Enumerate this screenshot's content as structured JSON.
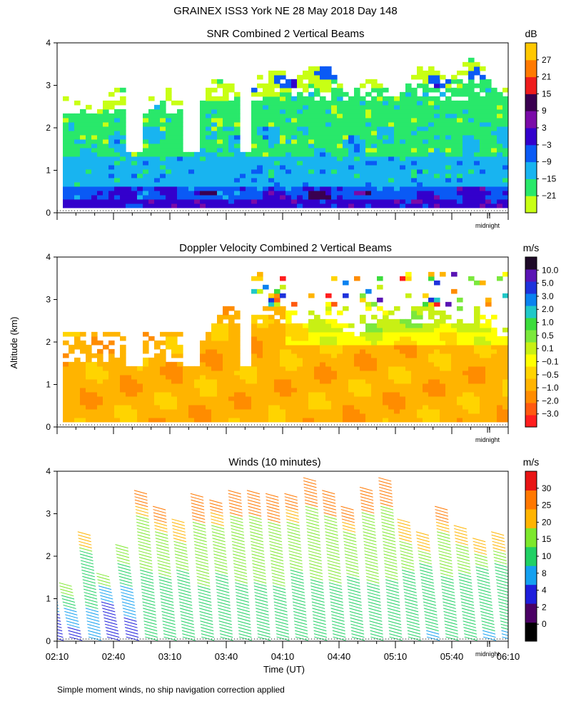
{
  "page_title": "GRAINEX ISS3 York NE  28 May 2018 Day 148",
  "footnote": "Simple moment winds, no ship navigation correction applied",
  "y_axis_label": "Altitude (km)",
  "x_axis_label": "Time (UT)",
  "midnight_label": "midnight",
  "time_ticks": [
    "02:10",
    "02:40",
    "03:10",
    "03:40",
    "04:10",
    "04:40",
    "05:10",
    "05:40",
    "06:10"
  ],
  "altitude_ticks": [
    "0",
    "1",
    "2",
    "3",
    "4"
  ],
  "palette": {
    "snr": [
      "#c8ff14",
      "#29e86a",
      "#18b4f0",
      "#0a5af5",
      "#3300cc",
      "#7a0aa8",
      "#3a0050",
      "#ee1c1c",
      "#ff7a00",
      "#ffc800"
    ],
    "doppler": [
      "#ff1e1e",
      "#ff5a10",
      "#ff8c00",
      "#ffb400",
      "#ffd400",
      "#ffff00",
      "#c8f014",
      "#7be83c",
      "#3cdc3c",
      "#20c8c8",
      "#0a82f0",
      "#1e32dc",
      "#5a14b4",
      "#1e0a28"
    ],
    "winds": [
      "#000000",
      "#4a0064",
      "#1e1edc",
      "#14a0f0",
      "#20d064",
      "#7de82c",
      "#ffb400",
      "#ff7800",
      "#e81414"
    ]
  },
  "chart_data": [
    {
      "type": "heatmap",
      "title": "SNR Combined 2 Vertical Beams",
      "units": "dB",
      "xlabel": "",
      "ylabel": "Altitude (km)",
      "x_range": [
        "02:10",
        "06:10"
      ],
      "ylim": [
        0,
        4
      ],
      "colorbar_ticks": [
        "27",
        "21",
        "15",
        "9",
        "3",
        "−3",
        "−9",
        "−15",
        "−21"
      ],
      "altitude_layers_km": [
        {
          "bottom": 0.1,
          "top": 0.6,
          "snr_db": 0
        },
        {
          "bottom": 0.6,
          "top": 1.4,
          "snr_db": -8
        },
        {
          "bottom": 1.4,
          "top": 2.4,
          "snr_db": -14
        },
        {
          "bottom": 2.4,
          "top": 3.3,
          "snr_db": -17
        },
        {
          "bottom": 3.3,
          "top": 4.0,
          "snr_db": -20
        }
      ]
    },
    {
      "type": "heatmap",
      "title": "Doppler Velocity Combined 2 Vertical Beams",
      "units": "m/s",
      "xlabel": "",
      "ylabel": "Altitude (km)",
      "x_range": [
        "02:10",
        "06:10"
      ],
      "ylim": [
        0,
        4
      ],
      "colorbar_ticks": [
        "10.0",
        "5.0",
        "3.0",
        "2.0",
        "1.0",
        "0.5",
        "0.1",
        "−0.1",
        "−0.5",
        "−1.0",
        "−2.0",
        "−3.0"
      ],
      "altitude_layers_km": [
        {
          "bottom": 0.1,
          "top": 1.4,
          "velocity_ms": -0.4
        },
        {
          "bottom": 1.4,
          "top": 2.4,
          "velocity_ms": -0.6
        },
        {
          "bottom": 2.4,
          "top": 3.6,
          "velocity_ms": 0.2
        }
      ]
    },
    {
      "type": "scatter",
      "title": "Winds (10 minutes)",
      "units": "m/s",
      "xlabel": "Time (UT)",
      "ylabel": "Altitude (km)",
      "x_range": [
        "02:10",
        "06:10"
      ],
      "ylim": [
        0,
        4
      ],
      "colorbar_ticks": [
        "30",
        "25",
        "20",
        "15",
        "10",
        "8",
        "4",
        "2",
        "0"
      ],
      "profiles": [
        {
          "time": "02:10",
          "max_alt_km": 1.8,
          "speed_ms": 9
        },
        {
          "time": "02:20",
          "max_alt_km": 1.4,
          "speed_ms": 10
        },
        {
          "time": "02:30",
          "max_alt_km": 2.6,
          "speed_ms": 12
        },
        {
          "time": "02:40",
          "max_alt_km": 1.6,
          "speed_ms": 8
        },
        {
          "time": "02:50",
          "max_alt_km": 2.3,
          "speed_ms": 10
        },
        {
          "time": "03:00",
          "max_alt_km": 3.6,
          "speed_ms": 16
        },
        {
          "time": "03:10",
          "max_alt_km": 3.2,
          "speed_ms": 16
        },
        {
          "time": "03:20",
          "max_alt_km": 2.9,
          "speed_ms": 15
        },
        {
          "time": "03:30",
          "max_alt_km": 3.5,
          "speed_ms": 17
        },
        {
          "time": "03:40",
          "max_alt_km": 3.4,
          "speed_ms": 16
        },
        {
          "time": "03:50",
          "max_alt_km": 3.6,
          "speed_ms": 17
        },
        {
          "time": "04:00",
          "max_alt_km": 3.6,
          "speed_ms": 17
        },
        {
          "time": "04:10",
          "max_alt_km": 3.5,
          "speed_ms": 17
        },
        {
          "time": "04:20",
          "max_alt_km": 3.5,
          "speed_ms": 16
        },
        {
          "time": "04:30",
          "max_alt_km": 3.9,
          "speed_ms": 17
        },
        {
          "time": "04:40",
          "max_alt_km": 3.6,
          "speed_ms": 17
        },
        {
          "time": "04:50",
          "max_alt_km": 3.2,
          "speed_ms": 16
        },
        {
          "time": "05:00",
          "max_alt_km": 3.7,
          "speed_ms": 17
        },
        {
          "time": "05:10",
          "max_alt_km": 3.9,
          "speed_ms": 17
        },
        {
          "time": "05:20",
          "max_alt_km": 2.9,
          "speed_ms": 15
        },
        {
          "time": "05:30",
          "max_alt_km": 2.6,
          "speed_ms": 14
        },
        {
          "time": "05:40",
          "max_alt_km": 3.2,
          "speed_ms": 16
        },
        {
          "time": "05:50",
          "max_alt_km": 2.8,
          "speed_ms": 15
        },
        {
          "time": "06:00",
          "max_alt_km": 2.5,
          "speed_ms": 14
        },
        {
          "time": "06:10",
          "max_alt_km": 2.6,
          "speed_ms": 14
        }
      ]
    }
  ]
}
